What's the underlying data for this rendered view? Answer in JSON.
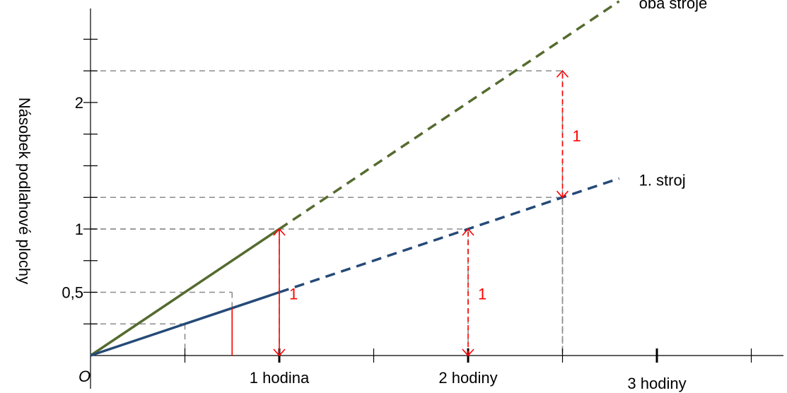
{
  "chart_data": {
    "type": "line",
    "title": "",
    "ylabel": "Násobek podlahové plochy",
    "origin_label": "O",
    "xlim": [
      0,
      3.5
    ],
    "ylim": [
      0,
      2.6
    ],
    "x_tick_labels": [
      {
        "x": 1,
        "label": "1 hodina"
      },
      {
        "x": 2,
        "label": "2 hodiny"
      },
      {
        "x": 3,
        "label": "3 hodiny"
      }
    ],
    "y_tick_labels": [
      {
        "y": 0.5,
        "label": "0,5"
      },
      {
        "y": 1,
        "label": "1"
      },
      {
        "y": 2,
        "label": "2"
      }
    ],
    "series": [
      {
        "name": "oba stroje",
        "color": "#556b2f",
        "solid": [
          [
            0,
            0
          ],
          [
            1,
            1
          ]
        ],
        "dashed": [
          [
            1,
            1
          ],
          [
            2.8,
            2.8
          ]
        ]
      },
      {
        "name": "1. stroj",
        "color": "#254a78",
        "solid": [
          [
            0,
            0
          ],
          [
            1,
            0.5
          ]
        ],
        "dashed": [
          [
            1,
            0.5
          ],
          [
            2.8,
            1.4
          ]
        ]
      }
    ],
    "guide_lines": [
      {
        "x": 0.5,
        "y": 0.25
      },
      {
        "x": 0.75,
        "y": 0.5
      },
      {
        "x": 1,
        "y": 1
      },
      {
        "x": 2,
        "y": 1
      },
      {
        "x": 2.5,
        "y": 2.25
      },
      {
        "x": 2.5,
        "y": 1.25
      }
    ],
    "annotations": [
      {
        "label": "1",
        "x": 1,
        "y_from": 0,
        "y_to": 1,
        "style": "solid"
      },
      {
        "label": "1",
        "x": 2,
        "y_from": 0,
        "y_to": 1,
        "style": "dashed"
      },
      {
        "label": "1",
        "x": 2.5,
        "y_from": 1.25,
        "y_to": 2.25,
        "style": "dashed"
      }
    ],
    "marker_line": {
      "x": 0.75,
      "y_from": 0,
      "y_to": 0.375
    },
    "annotation_color": "#ff0000",
    "grid": false
  }
}
